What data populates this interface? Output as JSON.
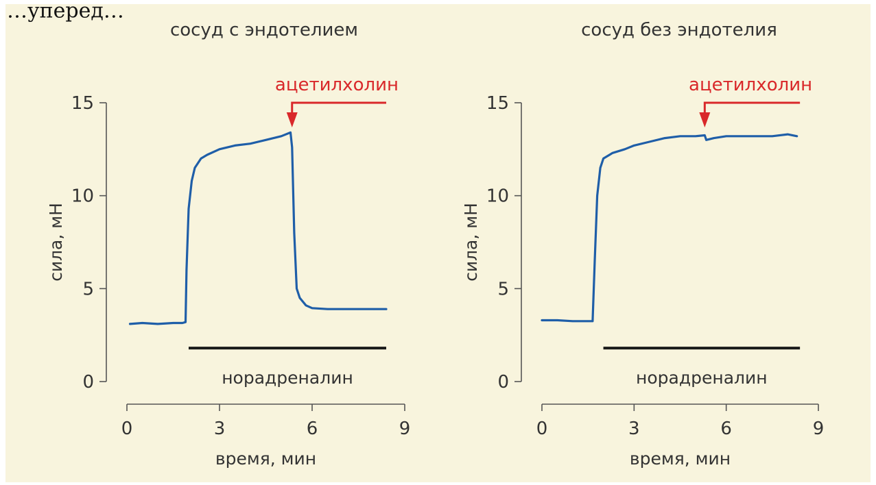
{
  "header_fragment": "…уперед…",
  "colors": {
    "background": "#f8f4dd",
    "trace": "#1f5ea8",
    "accent": "#d9282a",
    "axis": "#555555",
    "bar": "#1a1a1a",
    "text": "#333333"
  },
  "chart_data": [
    {
      "type": "line",
      "title": "сосуд с эндотелием",
      "xlabel": "время, мин",
      "ylabel": "сила, мН",
      "xlim": [
        0,
        9
      ],
      "ylim": [
        0,
        15
      ],
      "xticks": [
        0,
        3,
        6,
        9
      ],
      "yticks": [
        0,
        5,
        10,
        15
      ],
      "series": [
        {
          "name": "сила",
          "x": [
            0.1,
            0.5,
            1.0,
            1.5,
            1.8,
            1.9,
            1.93,
            2.0,
            2.1,
            2.2,
            2.4,
            2.6,
            3.0,
            3.5,
            4.0,
            4.5,
            5.0,
            5.3,
            5.35,
            5.42,
            5.5,
            5.6,
            5.8,
            6.0,
            6.5,
            7.0,
            7.5,
            8.0,
            8.4
          ],
          "y": [
            3.1,
            3.15,
            3.1,
            3.15,
            3.15,
            3.2,
            6.0,
            9.3,
            10.8,
            11.5,
            12.0,
            12.2,
            12.5,
            12.7,
            12.8,
            13.0,
            13.2,
            13.4,
            12.6,
            8.0,
            5.0,
            4.5,
            4.1,
            3.95,
            3.9,
            3.9,
            3.9,
            3.9,
            3.9
          ]
        }
      ],
      "annotations": {
        "acetylcholine": {
          "label": "ацетилхолин",
          "x_start": 5.35,
          "x_end": 8.4,
          "y": 15
        },
        "noradrenaline": {
          "label": "норадреналин",
          "x_start": 2.0,
          "x_end": 8.4,
          "y": 1.8
        }
      }
    },
    {
      "type": "line",
      "title": "сосуд без эндотелия",
      "xlabel": "время, мин",
      "ylabel": "сила, мН",
      "xlim": [
        0,
        9
      ],
      "ylim": [
        0,
        15
      ],
      "xticks": [
        0,
        3,
        6,
        9
      ],
      "yticks": [
        0,
        5,
        10,
        15
      ],
      "series": [
        {
          "name": "сила",
          "x": [
            0.0,
            0.5,
            1.0,
            1.5,
            1.65,
            1.72,
            1.8,
            1.9,
            2.0,
            2.3,
            2.7,
            3.0,
            3.5,
            4.0,
            4.5,
            5.0,
            5.3,
            5.35,
            5.6,
            6.0,
            6.5,
            7.0,
            7.5,
            8.0,
            8.3
          ],
          "y": [
            3.3,
            3.3,
            3.25,
            3.25,
            3.25,
            6.5,
            10.0,
            11.5,
            12.0,
            12.3,
            12.5,
            12.7,
            12.9,
            13.1,
            13.2,
            13.2,
            13.25,
            13.0,
            13.1,
            13.2,
            13.2,
            13.2,
            13.2,
            13.3,
            13.2
          ]
        }
      ],
      "annotations": {
        "acetylcholine": {
          "label": "ацетилхолин",
          "x_start": 5.3,
          "x_end": 8.4,
          "y": 15
        },
        "noradrenaline": {
          "label": "норадреналин",
          "x_start": 2.0,
          "x_end": 8.4,
          "y": 1.8
        }
      }
    }
  ]
}
